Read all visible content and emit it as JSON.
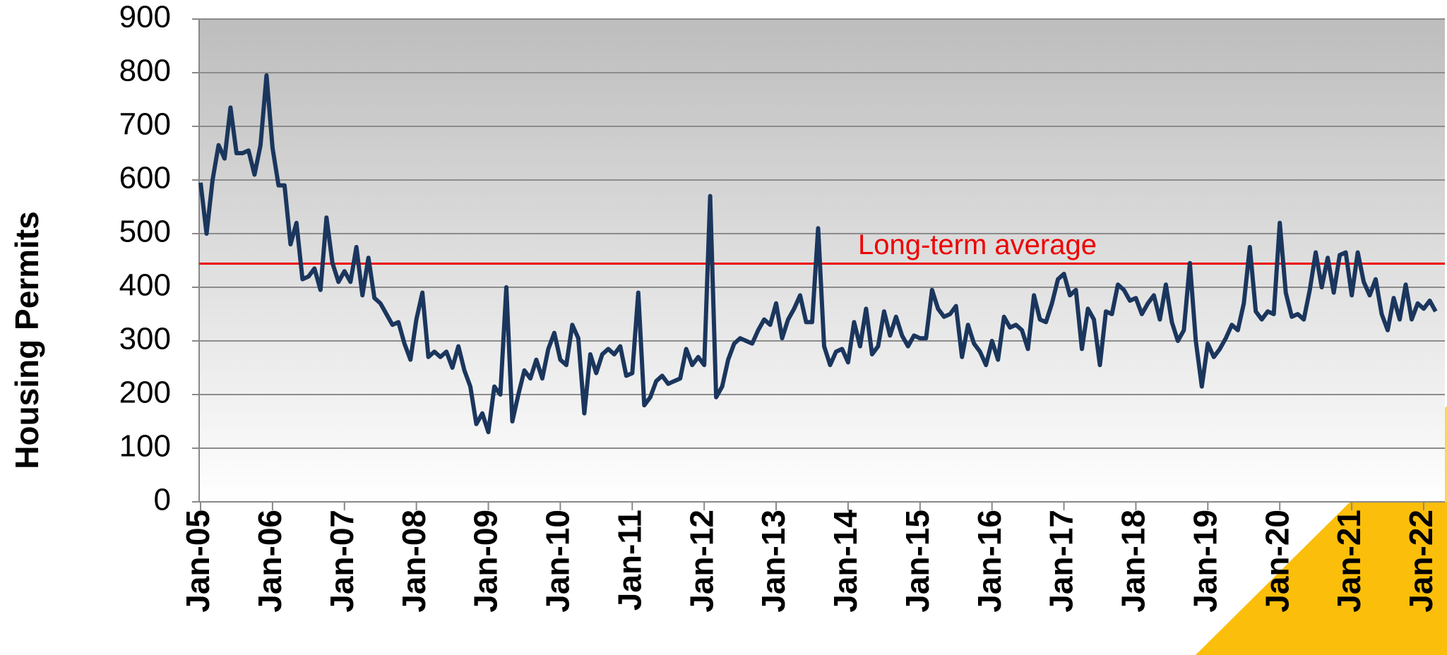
{
  "chart_data": {
    "type": "line",
    "y_label": "Housing Permits",
    "ylim": [
      0,
      900
    ],
    "yticks": [
      0,
      100,
      200,
      300,
      400,
      500,
      600,
      700,
      800,
      900
    ],
    "grid": true,
    "categories": [
      "Jan-05",
      null,
      null,
      null,
      null,
      null,
      null,
      null,
      null,
      null,
      null,
      null,
      "Jan-06",
      null,
      null,
      null,
      null,
      null,
      null,
      null,
      null,
      null,
      null,
      null,
      "Jan-07",
      null,
      null,
      null,
      null,
      null,
      null,
      null,
      null,
      null,
      null,
      null,
      "Jan-08",
      null,
      null,
      null,
      null,
      null,
      null,
      null,
      null,
      null,
      null,
      null,
      "Jan-09",
      null,
      null,
      null,
      null,
      null,
      null,
      null,
      null,
      null,
      null,
      null,
      "Jan-10",
      null,
      null,
      null,
      null,
      null,
      null,
      null,
      null,
      null,
      null,
      null,
      "Jan-11",
      null,
      null,
      null,
      null,
      null,
      null,
      null,
      null,
      null,
      null,
      null,
      "Jan-12",
      null,
      null,
      null,
      null,
      null,
      null,
      null,
      null,
      null,
      null,
      null,
      "Jan-13",
      null,
      null,
      null,
      null,
      null,
      null,
      null,
      null,
      null,
      null,
      null,
      "Jan-14",
      null,
      null,
      null,
      null,
      null,
      null,
      null,
      null,
      null,
      null,
      null,
      "Jan-15",
      null,
      null,
      null,
      null,
      null,
      null,
      null,
      null,
      null,
      null,
      null,
      "Jan-16",
      null,
      null,
      null,
      null,
      null,
      null,
      null,
      null,
      null,
      null,
      null,
      "Jan-17",
      null,
      null,
      null,
      null,
      null,
      null,
      null,
      null,
      null,
      null,
      null,
      "Jan-18",
      null,
      null,
      null,
      null,
      null,
      null,
      null,
      null,
      null,
      null,
      null,
      "Jan-19",
      null,
      null,
      null,
      null,
      null,
      null,
      null,
      null,
      null,
      null,
      null,
      "Jan-20",
      null,
      null,
      null,
      null,
      null,
      null,
      null,
      null,
      null,
      null,
      null,
      "Jan-21",
      null,
      null,
      null,
      null,
      null,
      null,
      null,
      null,
      null,
      null,
      null,
      "Jan-22",
      null,
      null
    ],
    "series": [
      {
        "name": "Housing Permits",
        "color": "#1b365d",
        "values": [
          595,
          500,
          600,
          665,
          640,
          735,
          650,
          650,
          655,
          610,
          665,
          795,
          660,
          590,
          590,
          480,
          520,
          415,
          420,
          435,
          395,
          530,
          445,
          410,
          430,
          410,
          475,
          385,
          455,
          380,
          370,
          350,
          330,
          335,
          295,
          265,
          340,
          390,
          270,
          280,
          270,
          280,
          250,
          290,
          245,
          215,
          145,
          165,
          130,
          215,
          200,
          400,
          150,
          200,
          245,
          230,
          265,
          230,
          285,
          315,
          265,
          255,
          330,
          305,
          165,
          275,
          240,
          275,
          285,
          275,
          290,
          235,
          240,
          390,
          180,
          195,
          225,
          235,
          220,
          225,
          230,
          285,
          255,
          270,
          255,
          570,
          195,
          215,
          265,
          295,
          305,
          300,
          295,
          320,
          340,
          330,
          370,
          305,
          340,
          360,
          385,
          335,
          335,
          510,
          290,
          255,
          280,
          285,
          260,
          335,
          290,
          360,
          275,
          290,
          355,
          310,
          345,
          310,
          290,
          310,
          305,
          305,
          395,
          360,
          345,
          350,
          365,
          270,
          330,
          295,
          280,
          255,
          300,
          265,
          345,
          325,
          330,
          320,
          285,
          385,
          340,
          335,
          370,
          415,
          425,
          385,
          395,
          285,
          360,
          340,
          255,
          355,
          350,
          405,
          395,
          375,
          380,
          350,
          370,
          385,
          340,
          405,
          335,
          300,
          320,
          445,
          300,
          215,
          295,
          270,
          285,
          305,
          330,
          320,
          370,
          475,
          355,
          340,
          355,
          350,
          520,
          390,
          345,
          350,
          340,
          395,
          465,
          400,
          455,
          390,
          460,
          465,
          385,
          465,
          410,
          385,
          415,
          350,
          320,
          380,
          340,
          405,
          340,
          370,
          360,
          375,
          355
        ]
      }
    ],
    "reference_line": {
      "value": 444,
      "label": "Long-term average",
      "color": "#ee0000"
    }
  }
}
